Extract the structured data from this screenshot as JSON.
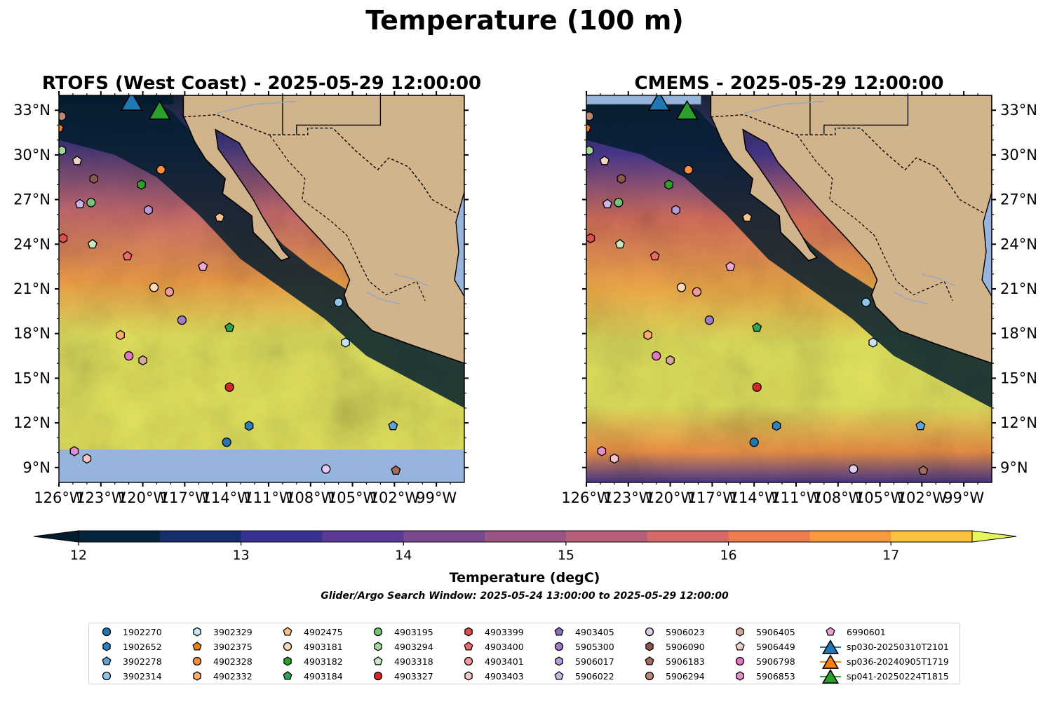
{
  "figure": {
    "suptitle": "Temperature (100 m)",
    "colors": {
      "land": "#d2b48c",
      "ocean_missing": "#96b4dc",
      "river": "#8fa8c8",
      "border": "#000000"
    }
  },
  "panels": [
    {
      "id": "rtofs",
      "title": "RTOFS (West Coast) - 2025-05-29 12:00:00",
      "lat_label_side": "left"
    },
    {
      "id": "cmems",
      "title": "CMEMS - 2025-05-29 12:00:00",
      "lat_label_side": "right"
    }
  ],
  "colorbar": {
    "label": "Temperature (degC)",
    "ticks": [
      "12",
      "13",
      "14",
      "15",
      "16",
      "17"
    ],
    "levels": [
      12,
      12.5,
      13,
      13.5,
      14,
      14.5,
      15,
      15.5,
      16,
      16.5,
      17,
      17.5
    ],
    "colors": [
      "#05253d",
      "#182d6b",
      "#3a3293",
      "#5a3a95",
      "#7a4a8c",
      "#9b5585",
      "#b85f7a",
      "#d56a68",
      "#ec7d4f",
      "#f79a3f",
      "#f9c13e"
    ],
    "under_color": "#041d2e",
    "over_color": "#e7f55a",
    "extend": "both"
  },
  "subtitle": "Glider/Argo Search Window: 2025-05-24 13:00:00 to 2025-05-29 12:00:00",
  "legend": {
    "placement": "bottom-center",
    "entries": [
      {
        "label": "1902270",
        "marker": "circle",
        "color": "#1f77b4"
      },
      {
        "label": "1902652",
        "marker": "hexagon",
        "color": "#2b82be"
      },
      {
        "label": "3902278",
        "marker": "pentagon",
        "color": "#5fa2d6"
      },
      {
        "label": "3902314",
        "marker": "circle",
        "color": "#8dc6ec"
      },
      {
        "label": "3902329",
        "marker": "hexagon",
        "color": "#c6e4f7"
      },
      {
        "label": "3902375",
        "marker": "pentagon",
        "color": "#f07f0e"
      },
      {
        "label": "4902328",
        "marker": "circle",
        "color": "#fd8d3c"
      },
      {
        "label": "4902332",
        "marker": "hexagon",
        "color": "#fdae6b"
      },
      {
        "label": "4902475",
        "marker": "pentagon",
        "color": "#fdc38f"
      },
      {
        "label": "4903181",
        "marker": "circle",
        "color": "#fdd9b8"
      },
      {
        "label": "4903182",
        "marker": "hexagon",
        "color": "#2ca02c"
      },
      {
        "label": "4903184",
        "marker": "pentagon",
        "color": "#31a354"
      },
      {
        "label": "4903195",
        "marker": "circle",
        "color": "#74c476"
      },
      {
        "label": "4903294",
        "marker": "hexagon",
        "color": "#a1d99b"
      },
      {
        "label": "4903318",
        "marker": "pentagon",
        "color": "#c7e9c0"
      },
      {
        "label": "4903327",
        "marker": "circle",
        "color": "#d62728"
      },
      {
        "label": "4903399",
        "marker": "hexagon",
        "color": "#de4c4c"
      },
      {
        "label": "4903400",
        "marker": "pentagon",
        "color": "#f0696a"
      },
      {
        "label": "4903401",
        "marker": "circle",
        "color": "#f4999a"
      },
      {
        "label": "4903403",
        "marker": "hexagon",
        "color": "#f9c6c6"
      },
      {
        "label": "4903405",
        "marker": "pentagon",
        "color": "#8b6cc0"
      },
      {
        "label": "5905300",
        "marker": "circle",
        "color": "#9e7cc8"
      },
      {
        "label": "5906017",
        "marker": "hexagon",
        "color": "#b79ad8"
      },
      {
        "label": "5906022",
        "marker": "pentagon",
        "color": "#cdb6e6"
      },
      {
        "label": "5906023",
        "marker": "circle",
        "color": "#dfcdf0"
      },
      {
        "label": "5906090",
        "marker": "hexagon",
        "color": "#8c564b"
      },
      {
        "label": "5906183",
        "marker": "pentagon",
        "color": "#a26b5e"
      },
      {
        "label": "5906294",
        "marker": "circle",
        "color": "#bd8778"
      },
      {
        "label": "5906405",
        "marker": "hexagon",
        "color": "#d7a898"
      },
      {
        "label": "5906449",
        "marker": "pentagon",
        "color": "#f1d1c4"
      },
      {
        "label": "5906798",
        "marker": "circle",
        "color": "#e377c2"
      },
      {
        "label": "5906853",
        "marker": "hexagon",
        "color": "#e98ccd"
      },
      {
        "label": "6990601",
        "marker": "pentagon",
        "color": "#f0a6da"
      },
      {
        "label": "sp030-20250310T2101",
        "marker": "triangle",
        "color": "#1f77b4"
      },
      {
        "label": "sp036-20240905T1719",
        "marker": "triangle",
        "color": "#ff7f0e"
      },
      {
        "label": "sp041-20250224T1815",
        "marker": "triangle",
        "color": "#2ca02c"
      }
    ]
  },
  "chart_data": [
    {
      "type": "heatmap",
      "title": "RTOFS (West Coast) - 2025-05-29 12:00:00",
      "xlabel": "",
      "ylabel": "",
      "x_ticks": [
        "126°W",
        "123°W",
        "120°W",
        "117°W",
        "114°W",
        "111°W",
        "108°W",
        "105°W",
        "102°W",
        "99°W"
      ],
      "y_ticks": [
        "9°N",
        "12°N",
        "15°N",
        "18°N",
        "21°N",
        "24°N",
        "27°N",
        "30°N",
        "33°N"
      ],
      "xlim": [
        -126,
        -97
      ],
      "ylim": [
        8,
        34
      ],
      "value_range": [
        12,
        17.5
      ],
      "missing_below_lat": 10.2,
      "grid": false,
      "markers": [
        {
          "label": "5906294",
          "lon": -125.8,
          "lat": 32.6
        },
        {
          "label": "3902375",
          "lon": -126.0,
          "lat": 31.8
        },
        {
          "label": "4903294",
          "lon": -125.8,
          "lat": 30.3
        },
        {
          "label": "5906449",
          "lon": -124.7,
          "lat": 29.6
        },
        {
          "label": "5906090",
          "lon": -123.5,
          "lat": 28.4
        },
        {
          "label": "4903182",
          "lon": -120.1,
          "lat": 28.0
        },
        {
          "label": "4902328",
          "lon": -118.7,
          "lat": 29.0
        },
        {
          "label": "5906022",
          "lon": -124.5,
          "lat": 26.7
        },
        {
          "label": "4903195",
          "lon": -123.7,
          "lat": 26.8
        },
        {
          "label": "5906017",
          "lon": -119.6,
          "lat": 26.3
        },
        {
          "label": "4902475",
          "lon": -114.5,
          "lat": 25.8
        },
        {
          "label": "4903399",
          "lon": -125.7,
          "lat": 24.4
        },
        {
          "label": "4903318",
          "lon": -123.6,
          "lat": 24.0
        },
        {
          "label": "4903400",
          "lon": -121.1,
          "lat": 23.2
        },
        {
          "label": "6990601",
          "lon": -115.7,
          "lat": 22.5
        },
        {
          "label": "4903181",
          "lon": -119.2,
          "lat": 21.1
        },
        {
          "label": "4903401",
          "lon": -118.1,
          "lat": 20.8
        },
        {
          "label": "5905300",
          "lon": -117.2,
          "lat": 18.9
        },
        {
          "label": "4903184",
          "lon": -113.8,
          "lat": 18.4
        },
        {
          "label": "3902314",
          "lon": -106.0,
          "lat": 20.1
        },
        {
          "label": "3902329",
          "lon": -105.5,
          "lat": 17.4
        },
        {
          "label": "4902332",
          "lon": -121.6,
          "lat": 17.9
        },
        {
          "label": "5906798",
          "lon": -121.0,
          "lat": 16.5
        },
        {
          "label": "5906405",
          "lon": -120.0,
          "lat": 16.2
        },
        {
          "label": "4903327",
          "lon": -113.8,
          "lat": 14.4
        },
        {
          "label": "1902652",
          "lon": -112.4,
          "lat": 11.8
        },
        {
          "label": "3902278",
          "lon": -102.1,
          "lat": 11.8
        },
        {
          "label": "1902270",
          "lon": -114.0,
          "lat": 10.7
        },
        {
          "label": "5906853",
          "lon": -124.9,
          "lat": 10.1
        },
        {
          "label": "4903403",
          "lon": -124.0,
          "lat": 9.6
        },
        {
          "label": "5906023",
          "lon": -106.9,
          "lat": 8.9
        },
        {
          "label": "5906183",
          "lon": -101.9,
          "lat": 8.8
        },
        {
          "label": "sp030-20250310T2101",
          "lon": -120.8,
          "lat": 33.6
        },
        {
          "label": "sp041-20250224T1815",
          "lon": -118.8,
          "lat": 33.0
        }
      ]
    },
    {
      "type": "heatmap",
      "title": "CMEMS - 2025-05-29 12:00:00",
      "xlabel": "",
      "ylabel": "",
      "x_ticks": [
        "126°W",
        "123°W",
        "120°W",
        "117°W",
        "114°W",
        "111°W",
        "108°W",
        "105°W",
        "102°W",
        "99°W"
      ],
      "y_ticks": [
        "9°N",
        "12°N",
        "15°N",
        "18°N",
        "21°N",
        "24°N",
        "27°N",
        "30°N",
        "33°N"
      ],
      "xlim": [
        -126,
        -97
      ],
      "ylim": [
        8,
        34
      ],
      "value_range": [
        12,
        17.5
      ],
      "grid": false,
      "markers": [
        {
          "label": "5906294",
          "lon": -125.8,
          "lat": 32.6
        },
        {
          "label": "3902375",
          "lon": -126.0,
          "lat": 31.8
        },
        {
          "label": "4903294",
          "lon": -125.8,
          "lat": 30.3
        },
        {
          "label": "5906449",
          "lon": -124.7,
          "lat": 29.6
        },
        {
          "label": "5906090",
          "lon": -123.5,
          "lat": 28.4
        },
        {
          "label": "4903182",
          "lon": -120.1,
          "lat": 28.0
        },
        {
          "label": "4902328",
          "lon": -118.7,
          "lat": 29.0
        },
        {
          "label": "5906022",
          "lon": -124.5,
          "lat": 26.7
        },
        {
          "label": "4903195",
          "lon": -123.7,
          "lat": 26.8
        },
        {
          "label": "5906017",
          "lon": -119.6,
          "lat": 26.3
        },
        {
          "label": "4902475",
          "lon": -114.5,
          "lat": 25.8
        },
        {
          "label": "4903399",
          "lon": -125.7,
          "lat": 24.4
        },
        {
          "label": "4903318",
          "lon": -123.6,
          "lat": 24.0
        },
        {
          "label": "4903400",
          "lon": -121.1,
          "lat": 23.2
        },
        {
          "label": "6990601",
          "lon": -115.7,
          "lat": 22.5
        },
        {
          "label": "4903181",
          "lon": -119.2,
          "lat": 21.1
        },
        {
          "label": "4903401",
          "lon": -118.1,
          "lat": 20.8
        },
        {
          "label": "5905300",
          "lon": -117.2,
          "lat": 18.9
        },
        {
          "label": "4903184",
          "lon": -113.8,
          "lat": 18.4
        },
        {
          "label": "3902314",
          "lon": -106.0,
          "lat": 20.1
        },
        {
          "label": "3902329",
          "lon": -105.5,
          "lat": 17.4
        },
        {
          "label": "4902332",
          "lon": -121.6,
          "lat": 17.9
        },
        {
          "label": "5906798",
          "lon": -121.0,
          "lat": 16.5
        },
        {
          "label": "5906405",
          "lon": -120.0,
          "lat": 16.2
        },
        {
          "label": "4903327",
          "lon": -113.8,
          "lat": 14.4
        },
        {
          "label": "1902652",
          "lon": -112.4,
          "lat": 11.8
        },
        {
          "label": "3902278",
          "lon": -102.1,
          "lat": 11.8
        },
        {
          "label": "1902270",
          "lon": -114.0,
          "lat": 10.7
        },
        {
          "label": "5906853",
          "lon": -124.9,
          "lat": 10.1
        },
        {
          "label": "4903403",
          "lon": -124.0,
          "lat": 9.6
        },
        {
          "label": "5906023",
          "lon": -106.9,
          "lat": 8.9
        },
        {
          "label": "5906183",
          "lon": -101.9,
          "lat": 8.8
        },
        {
          "label": "sp030-20250310T2101",
          "lon": -120.8,
          "lat": 33.6
        },
        {
          "label": "sp041-20250224T1815",
          "lon": -118.8,
          "lat": 33.0
        }
      ]
    }
  ]
}
